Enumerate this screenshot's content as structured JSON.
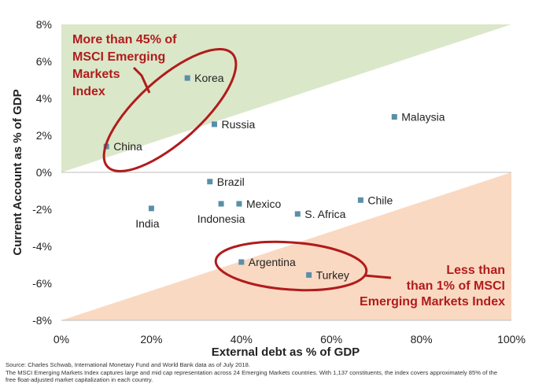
{
  "chart_data": {
    "type": "scatter",
    "title": "",
    "xlabel": "External debt as % of GDP",
    "ylabel": "Current Account as % of GDP",
    "xlim": [
      0,
      100
    ],
    "ylim": [
      -8,
      8
    ],
    "x_ticks": [
      0,
      20,
      40,
      60,
      80,
      100
    ],
    "y_ticks": [
      -8,
      -6,
      -4,
      -2,
      0,
      2,
      4,
      6,
      8
    ],
    "x_tick_labels": [
      "0%",
      "20%",
      "40%",
      "60%",
      "80%",
      "100%"
    ],
    "y_tick_labels": [
      "-8%",
      "-6%",
      "-4%",
      "-2%",
      "0%",
      "2%",
      "4%",
      "6%",
      "8%"
    ],
    "points": [
      {
        "name": "Korea",
        "x": 28,
        "y": 5.1
      },
      {
        "name": "Russia",
        "x": 34,
        "y": 2.6
      },
      {
        "name": "China",
        "x": 10,
        "y": 1.4
      },
      {
        "name": "Malaysia",
        "x": 74,
        "y": 3.0
      },
      {
        "name": "Brazil",
        "x": 33,
        "y": -0.5
      },
      {
        "name": "Mexico",
        "x": 39.5,
        "y": -1.7
      },
      {
        "name": "Indonesia",
        "x": 35.5,
        "y": -1.7
      },
      {
        "name": "India",
        "x": 20,
        "y": -1.95
      },
      {
        "name": "S. Africa",
        "x": 52.5,
        "y": -2.25
      },
      {
        "name": "Chile",
        "x": 66.5,
        "y": -1.5
      },
      {
        "name": "Argentina",
        "x": 40,
        "y": -4.85
      },
      {
        "name": "Turkey",
        "x": 55,
        "y": -5.55
      }
    ],
    "regions": [
      {
        "name": "upper",
        "vertices": [
          [
            0,
            0
          ],
          [
            100,
            8
          ],
          [
            0,
            8
          ]
        ],
        "color": "#dbe7c9"
      },
      {
        "name": "lower",
        "vertices": [
          [
            0,
            -8
          ],
          [
            100,
            0
          ],
          [
            100,
            -8
          ]
        ],
        "color": "#fad9c2"
      }
    ],
    "annotations": [
      {
        "lines": [
          "More than 45% of",
          "MSCI Emerging",
          "Markets",
          "Index"
        ]
      },
      {
        "lines": [
          "Less than",
          "than 1% of MSCI",
          "Emerging Markets Index"
        ]
      }
    ]
  },
  "colors": {
    "marker": "#5a8fa8",
    "annotation": "#b01c1c",
    "upper_region": "#dbe7c9",
    "lower_region": "#fad9c2"
  },
  "footnote": {
    "line1": "Source: Charles Schwab, International Monetary Fund and World Bank data as of July 2018.",
    "line2": "The MSCI Emerging Markets Index captures large and mid cap representation across 24 Emerging Markets countries. With 1,137 constituents, the index covers approximately 85% of the",
    "line3": "free float-adjusted market capitalization in each country."
  }
}
